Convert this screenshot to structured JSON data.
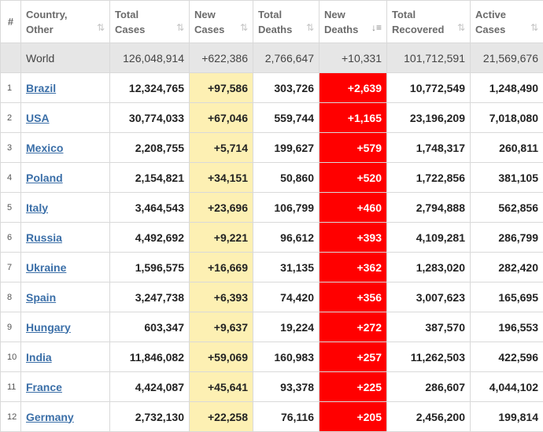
{
  "headers": {
    "rank": "#",
    "country": [
      "Country,",
      "Other"
    ],
    "total_cases": [
      "Total",
      "Cases"
    ],
    "new_cases": [
      "New",
      "Cases"
    ],
    "total_deaths": [
      "Total",
      "Deaths"
    ],
    "new_deaths": [
      "New",
      "Deaths"
    ],
    "total_recovered": [
      "Total",
      "Recovered"
    ],
    "active_cases": [
      "Active",
      "Cases"
    ]
  },
  "icons": {
    "sort": "sort-icon",
    "sort_active": "sort-descending-icon"
  },
  "world": {
    "country": "World",
    "total_cases": "126,048,914",
    "new_cases": "+622,386",
    "total_deaths": "2,766,647",
    "new_deaths": "+10,331",
    "total_recovered": "101,712,591",
    "active_cases": "21,569,676"
  },
  "rows": [
    {
      "rank": "1",
      "country": "Brazil",
      "total_cases": "12,324,765",
      "new_cases": "+97,586",
      "total_deaths": "303,726",
      "new_deaths": "+2,639",
      "total_recovered": "10,772,549",
      "active_cases": "1,248,490"
    },
    {
      "rank": "2",
      "country": "USA",
      "total_cases": "30,774,033",
      "new_cases": "+67,046",
      "total_deaths": "559,744",
      "new_deaths": "+1,165",
      "total_recovered": "23,196,209",
      "active_cases": "7,018,080"
    },
    {
      "rank": "3",
      "country": "Mexico",
      "total_cases": "2,208,755",
      "new_cases": "+5,714",
      "total_deaths": "199,627",
      "new_deaths": "+579",
      "total_recovered": "1,748,317",
      "active_cases": "260,811"
    },
    {
      "rank": "4",
      "country": "Poland",
      "total_cases": "2,154,821",
      "new_cases": "+34,151",
      "total_deaths": "50,860",
      "new_deaths": "+520",
      "total_recovered": "1,722,856",
      "active_cases": "381,105"
    },
    {
      "rank": "5",
      "country": "Italy",
      "total_cases": "3,464,543",
      "new_cases": "+23,696",
      "total_deaths": "106,799",
      "new_deaths": "+460",
      "total_recovered": "2,794,888",
      "active_cases": "562,856"
    },
    {
      "rank": "6",
      "country": "Russia",
      "total_cases": "4,492,692",
      "new_cases": "+9,221",
      "total_deaths": "96,612",
      "new_deaths": "+393",
      "total_recovered": "4,109,281",
      "active_cases": "286,799"
    },
    {
      "rank": "7",
      "country": "Ukraine",
      "total_cases": "1,596,575",
      "new_cases": "+16,669",
      "total_deaths": "31,135",
      "new_deaths": "+362",
      "total_recovered": "1,283,020",
      "active_cases": "282,420"
    },
    {
      "rank": "8",
      "country": "Spain",
      "total_cases": "3,247,738",
      "new_cases": "+6,393",
      "total_deaths": "74,420",
      "new_deaths": "+356",
      "total_recovered": "3,007,623",
      "active_cases": "165,695"
    },
    {
      "rank": "9",
      "country": "Hungary",
      "total_cases": "603,347",
      "new_cases": "+9,637",
      "total_deaths": "19,224",
      "new_deaths": "+272",
      "total_recovered": "387,570",
      "active_cases": "196,553"
    },
    {
      "rank": "10",
      "country": "India",
      "total_cases": "11,846,082",
      "new_cases": "+59,069",
      "total_deaths": "160,983",
      "new_deaths": "+257",
      "total_recovered": "11,262,503",
      "active_cases": "422,596"
    },
    {
      "rank": "11",
      "country": "France",
      "total_cases": "4,424,087",
      "new_cases": "+45,641",
      "total_deaths": "93,378",
      "new_deaths": "+225",
      "total_recovered": "286,607",
      "active_cases": "4,044,102"
    },
    {
      "rank": "12",
      "country": "Germany",
      "total_cases": "2,732,130",
      "new_cases": "+22,258",
      "total_deaths": "76,116",
      "new_deaths": "+205",
      "total_recovered": "2,456,200",
      "active_cases": "199,814"
    }
  ],
  "colors": {
    "new_cases_bg": "#fdf0b3",
    "new_deaths_bg": "#ff0000",
    "world_row_bg": "#e6e6e6",
    "link": "#3b6fa8"
  }
}
